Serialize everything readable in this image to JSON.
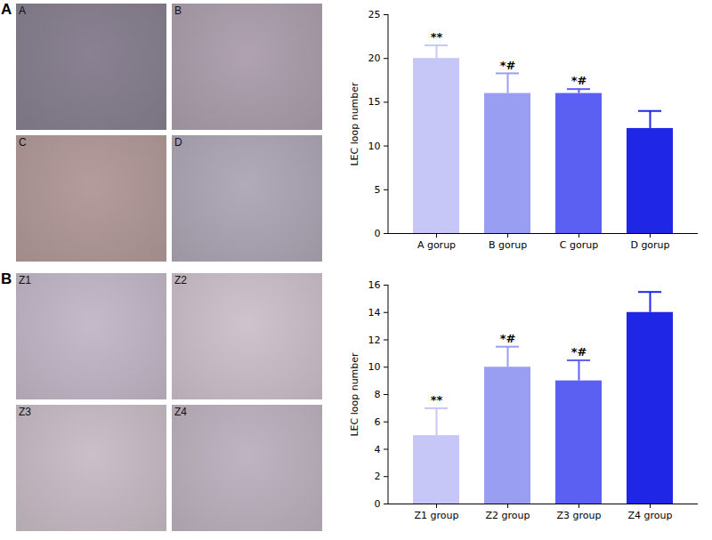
{
  "panels": [
    {
      "label": "A",
      "images": [
        "A",
        "B",
        "C",
        "D"
      ]
    },
    {
      "label": "B",
      "images": [
        "Z1",
        "Z2",
        "Z3",
        "Z4"
      ]
    }
  ],
  "chart_data": [
    {
      "type": "bar",
      "categories": [
        "A gorup",
        "B gorup",
        "C gorup",
        "D gorup"
      ],
      "values": [
        20,
        16,
        16,
        12
      ],
      "errors": [
        1.5,
        2.3,
        0.5,
        2
      ],
      "annotations": [
        "**",
        "*#",
        "*#",
        null
      ],
      "colors": [
        "#c6c7f7",
        "#9a9ef3",
        "#5b60f2",
        "#1f26e6"
      ],
      "y_label": "LEC loop number",
      "ylim": [
        0,
        25
      ],
      "yticks": [
        0,
        5,
        10,
        15,
        20,
        25
      ]
    },
    {
      "type": "bar",
      "categories": [
        "Z1 group",
        "Z2 group",
        "Z3 group",
        "Z4 group"
      ],
      "values": [
        5,
        10,
        9,
        14
      ],
      "errors": [
        2,
        1.5,
        1.5,
        1.5
      ],
      "annotations": [
        "**",
        "*#",
        "*#",
        null
      ],
      "colors": [
        "#c6c7f7",
        "#9a9ef3",
        "#5b60f2",
        "#1f26e6"
      ],
      "y_label": "LEC loop number",
      "ylim": [
        0,
        16
      ],
      "yticks": [
        0,
        2,
        4,
        6,
        8,
        10,
        12,
        14,
        16
      ]
    }
  ]
}
